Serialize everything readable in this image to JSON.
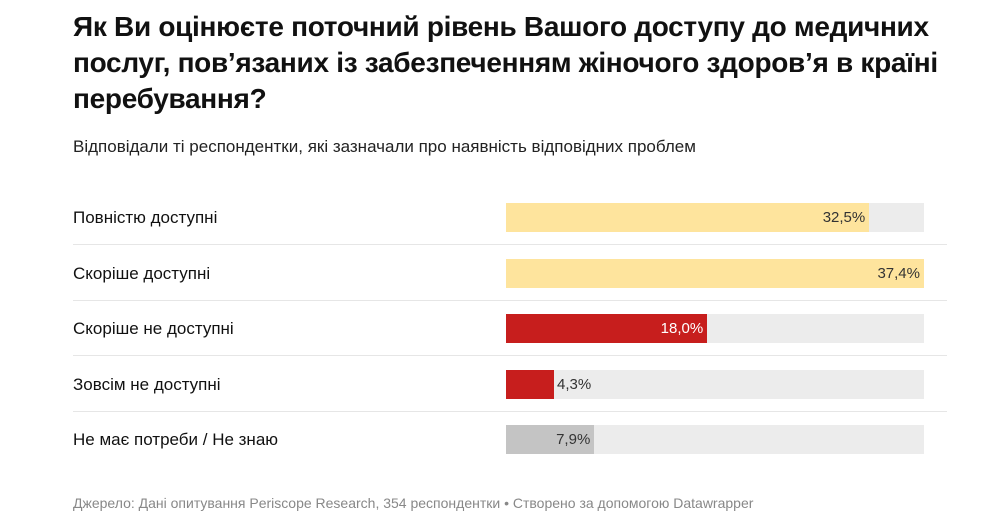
{
  "chart_data": {
    "type": "bar",
    "title": "Як Ви оцінюєте поточний рівень Вашого доступу до медичних послуг, пов’язаних із забезпеченням жіночого здоров’я в країні перебування?",
    "subtitle": "Відповідали ті респондентки, які зазначали про наявність відповідних проблем",
    "categories": [
      "Повністю доступні",
      "Скоріше доступні",
      "Скоріше не доступні",
      "Зовсім не доступні",
      "Не має потреби / Не знаю"
    ],
    "values": [
      32.5,
      37.4,
      18.0,
      4.3,
      7.9
    ],
    "labels": [
      "32,5%",
      "37,4%",
      "18,0%",
      "4,3%",
      "7,9%"
    ],
    "colors": [
      "#fee49d",
      "#fee49d",
      "#c71e1d",
      "#c71e1d",
      "#c4c4c4"
    ],
    "track_color": "#ececec",
    "xlim": [
      0,
      37.4
    ],
    "grid": false,
    "footer": "Джерело: Дані опитування Periscope Research, 354 респондентки • Створено за допомогою Datawrapper"
  }
}
